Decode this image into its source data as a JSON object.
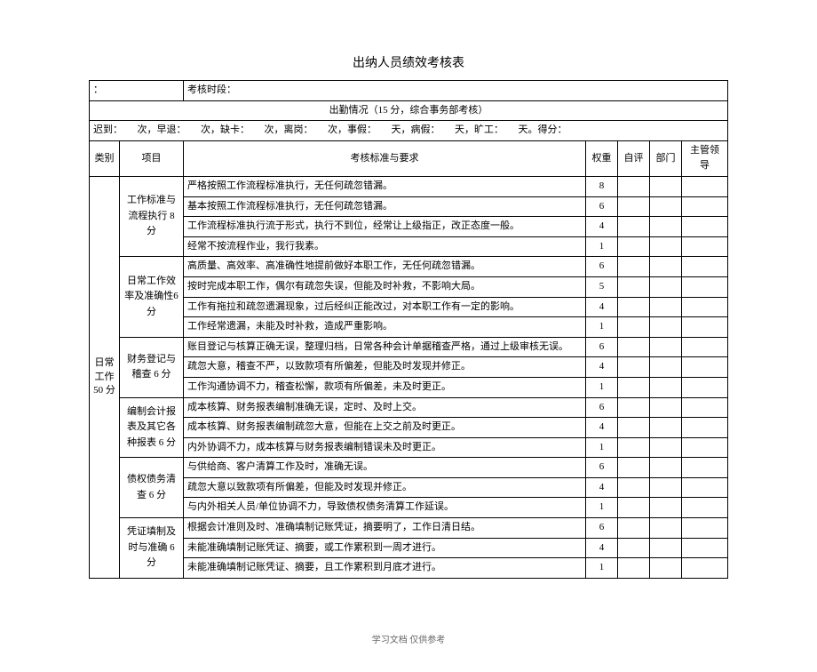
{
  "title": "出纳人员绩效考核表",
  "period_label": "考核时段：",
  "attendance_header": "出勤情况（15 分，综合事务部考核）",
  "attendance_line": "迟到：　　次，早退：　　次，缺卡：　　次，离岗：　　次，事假：　　天，病假：　　天，旷工：　　天。得分：",
  "columns": {
    "category": "类别",
    "item": "项目",
    "standard": "考核标准与要求",
    "weight": "权重",
    "self": "自评",
    "dept": "部门",
    "leader": "主管领导"
  },
  "category": "日常工作50 分",
  "groups": [
    {
      "item": "工作标准与流程执行 8分",
      "rows": [
        {
          "std": "严格按照工作流程标准执行，无任何疏忽错漏。",
          "w": "8"
        },
        {
          "std": "基本按照工作流程标准执行，无任何疏忽错漏。",
          "w": "6"
        },
        {
          "std": "工作流程标准执行流于形式，执行不到位，经常让上级指正，改正态度一般。",
          "w": "4"
        },
        {
          "std": "经常不按流程作业，我行我素。",
          "w": "1"
        }
      ]
    },
    {
      "item": "日常工作效率及准确性6 分",
      "rows": [
        {
          "std": "高质量、高效率、高准确性地提前做好本职工作，无任何疏忽错漏。",
          "w": "6"
        },
        {
          "std": "按时完成本职工作，偶尔有疏忽失误，但能及时补救，不影响大局。",
          "w": "5"
        },
        {
          "std": "工作有拖拉和疏忽遗漏现象，过后经纠正能改过，对本职工作有一定的影响。",
          "w": "4"
        },
        {
          "std": "工作经常遗漏，未能及时补救，造成严重影响。",
          "w": "1"
        }
      ]
    },
    {
      "item": "财务登记与稽查 6 分",
      "rows": [
        {
          "std": "账目登记与核算正确无误，整理归档，日常各种会计单据稽查严格，通过上级审核无误。",
          "w": "6"
        },
        {
          "std": "疏忽大意，稽查不严，以致款项有所偏差，但能及时发现并修正。",
          "w": "4"
        },
        {
          "std": "工作沟通协调不力，稽查松懈，款项有所偏差，未及时更正。",
          "w": "1"
        }
      ]
    },
    {
      "item": "编制会计报表及其它各种报表 6 分",
      "rows": [
        {
          "std": "成本核算、财务报表编制准确无误，定时、及时上交。",
          "w": "6"
        },
        {
          "std": "成本核算、财务报表编制疏忽大意，但能在上交之前及时更正。",
          "w": "4"
        },
        {
          "std": "内外协调不力，成本核算与财务报表编制错误未及时更正。",
          "w": "1"
        }
      ]
    },
    {
      "item": "债权债务清查 6 分",
      "rows": [
        {
          "std": "与供给商、客户清算工作及时，准确无误。",
          "w": "6"
        },
        {
          "std": "疏忽大意以致款项有所偏差，但能及时发现并修正。",
          "w": "4"
        },
        {
          "std": "与内外相关人员/单位协调不力，导致债权债务清算工作延误。",
          "w": "1"
        }
      ]
    },
    {
      "item": "凭证填制及时与准确 6分",
      "rows": [
        {
          "std": "根据会计准则及时、准确填制记账凭证，摘要明了，工作日清日结。",
          "w": "6"
        },
        {
          "std": "未能准确填制记账凭证、摘要，或工作累积到一周才进行。",
          "w": "4"
        },
        {
          "std": "未能准确填制记账凭证、摘要，且工作累积到月底才进行。",
          "w": "1"
        }
      ]
    }
  ],
  "footer": "学习文档  仅供参考",
  "layout": {
    "col_widths": [
      "34px",
      "72px",
      "auto",
      "36px",
      "36px",
      "36px",
      "52px"
    ],
    "border_color": "#000000",
    "background": "#ffffff",
    "font_size_body": 11,
    "font_size_title": 14,
    "font_family": "SimSun"
  }
}
